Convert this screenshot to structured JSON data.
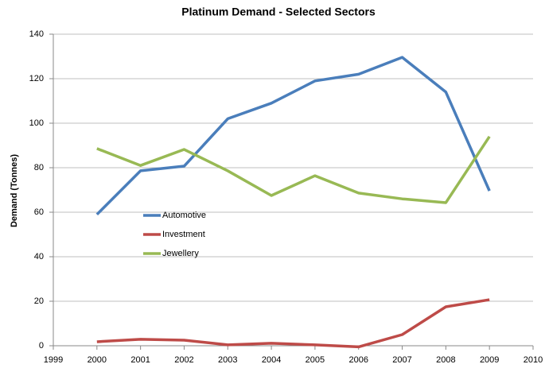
{
  "chart_data": {
    "type": "line",
    "title": "Platinum Demand - Selected Sectors",
    "y_label": "Demand (Tonnes)",
    "x": [
      2000,
      2001,
      2002,
      2003,
      2004,
      2005,
      2006,
      2007,
      2008,
      2009
    ],
    "series": [
      {
        "name": "Automotive",
        "color": "#4a7ebb",
        "values": [
          59,
          78.6,
          80.7,
          102,
          109,
          119,
          122,
          129.6,
          114,
          69.6
        ]
      },
      {
        "name": "Investment",
        "color": "#be4b48",
        "values": [
          1.8,
          2.9,
          2.5,
          0.4,
          1.1,
          0.4,
          -0.5,
          5,
          17.5,
          20.7
        ]
      },
      {
        "name": "Jewellery",
        "color": "#98b954",
        "values": [
          88.6,
          81,
          88.2,
          78.6,
          67.5,
          76.4,
          68.6,
          66,
          64.3,
          94
        ]
      }
    ],
    "xlim": [
      1999,
      2010
    ],
    "xticks": [
      1999,
      2000,
      2001,
      2002,
      2003,
      2004,
      2005,
      2006,
      2007,
      2008,
      2009,
      2010
    ],
    "ylim": [
      0,
      140
    ],
    "yticks": [
      0,
      20,
      40,
      60,
      80,
      100,
      120,
      140
    ],
    "grid": true,
    "legend": "left"
  }
}
